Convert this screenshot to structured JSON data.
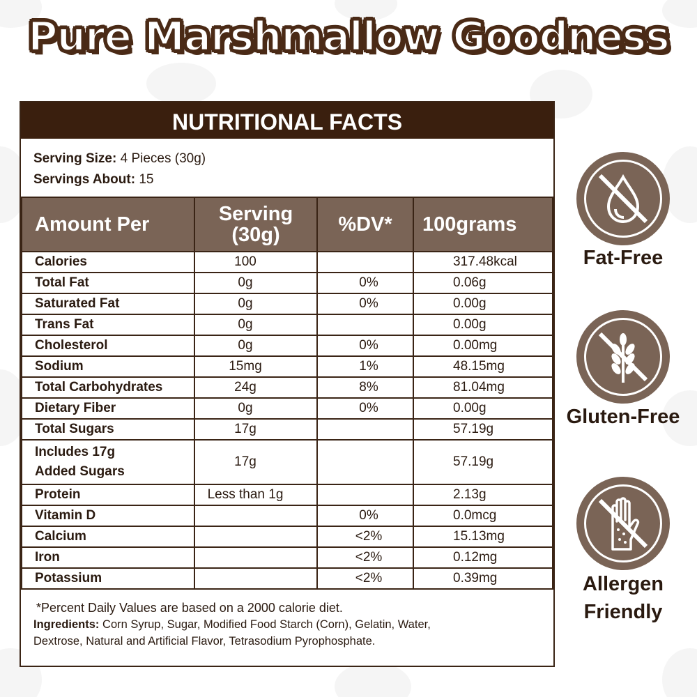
{
  "title": "Pure Marshmallow Goodness",
  "panel": {
    "heading": "NUTRITIONAL FACTS",
    "serving_size_label": "Serving Size:",
    "serving_size_value": "4 Pieces (30g)",
    "servings_about_label": "Servings About:",
    "servings_about_value": "15"
  },
  "table": {
    "headers": {
      "amount_per": "Amount Per",
      "serving_line1": "Serving",
      "serving_line2": "(30g)",
      "dv": "%DV*",
      "per100": "100grams"
    },
    "rows": [
      {
        "name": "Calories",
        "serving": "100",
        "dv": "",
        "per100": "317.48kcal"
      },
      {
        "name": "Total Fat",
        "serving": "0g",
        "dv": "0%",
        "per100": "0.06g"
      },
      {
        "name": "Saturated Fat",
        "serving": "0g",
        "dv": "0%",
        "per100": "0.00g"
      },
      {
        "name": "Trans Fat",
        "serving": "0g",
        "dv": "",
        "per100": "0.00g"
      },
      {
        "name": "Cholesterol",
        "serving": "0g",
        "dv": "0%",
        "per100": "0.00mg"
      },
      {
        "name": "Sodium",
        "serving": "15mg",
        "dv": "1%",
        "per100": "48.15mg"
      },
      {
        "name": "Total Carbohydrates",
        "serving": "24g",
        "dv": "8%",
        "per100": "81.04mg"
      },
      {
        "name": "Dietary Fiber",
        "serving": "0g",
        "dv": "0%",
        "per100": "0.00g"
      },
      {
        "name": "Total Sugars",
        "serving": "17g",
        "dv": "",
        "per100": "57.19g"
      },
      {
        "name_line1": "Includes 17g",
        "name_line2": "Added Sugars",
        "serving": "17g",
        "dv": "",
        "per100": "57.19g"
      },
      {
        "name": "Protein",
        "serving": "Less than 1g",
        "dv": "",
        "per100": "2.13g"
      },
      {
        "name": "Vitamin D",
        "serving": "",
        "dv": "0%",
        "per100": "0.0mcg"
      },
      {
        "name": "Calcium",
        "serving": "",
        "dv": "<2%",
        "per100": "15.13mg"
      },
      {
        "name": "Iron",
        "serving": "",
        "dv": "<2%",
        "per100": "0.12mg"
      },
      {
        "name": "Potassium",
        "serving": "",
        "dv": "<2%",
        "per100": "0.39mg"
      }
    ]
  },
  "footnote": "*Percent Daily Values are based on a 2000 calorie diet.",
  "ingredients_label": "Ingredients:",
  "ingredients_text": "Corn Syrup, Sugar, Modified Food Starch (Corn), Gelatin, Water,",
  "ingredients_text2": "Dextrose, Natural and Artificial Flavor, Tetrasodium Pyrophosphate.",
  "badges": [
    {
      "label": "Fat-Free",
      "icon": "fat-drop-crossed-icon"
    },
    {
      "label": "Gluten-Free",
      "icon": "wheat-crossed-icon"
    },
    {
      "label_line1": "Allergen",
      "label_line2": "Friendly",
      "icon": "hand-allergen-crossed-icon"
    }
  ],
  "colors": {
    "header_dark": "#3a1f0e",
    "header_mid": "#7a6456",
    "title_outline": "#4a2a16",
    "badge_bg": "#7a6456"
  }
}
